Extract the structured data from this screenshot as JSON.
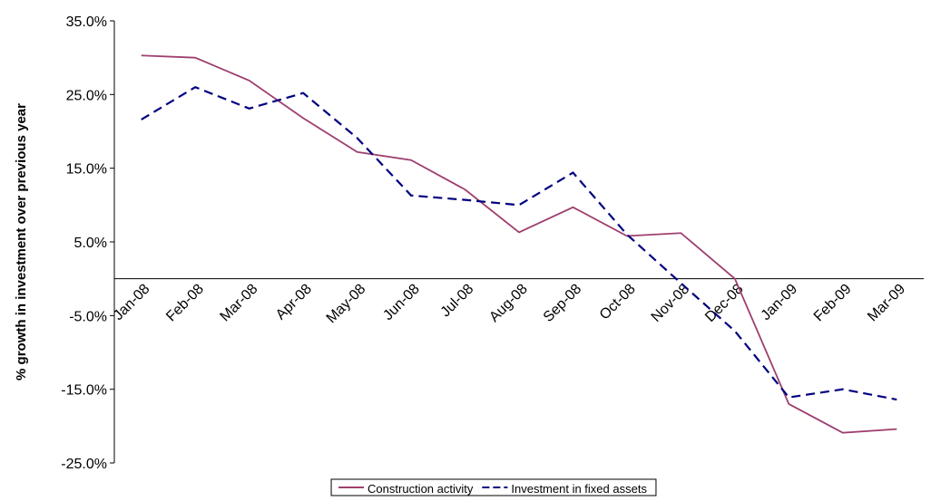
{
  "chart_data": {
    "type": "line",
    "y_label": "% growth in investment over previous year",
    "categories": [
      "Jan-08",
      "Feb-08",
      "Mar-08",
      "Apr-08",
      "May-08",
      "Jun-08",
      "Jul-08",
      "Aug-08",
      "Sep-08",
      "Oct-08",
      "Nov-08",
      "Dec-08",
      "Jan-09",
      "Feb-09",
      "Mar-09"
    ],
    "series": [
      {
        "name": "Construction activity",
        "color": "#9e3f6e",
        "dash": false,
        "values": [
          30.3,
          30.0,
          26.9,
          21.8,
          17.2,
          16.1,
          12.1,
          6.3,
          9.7,
          5.8,
          6.2,
          0.0,
          -17.0,
          -20.9,
          -20.4
        ]
      },
      {
        "name": "Investment in fixed assets",
        "color": "#000080",
        "dash": true,
        "values": [
          21.6,
          26.0,
          23.1,
          25.2,
          19.1,
          11.3,
          10.7,
          10.0,
          14.4,
          6.0,
          -0.6,
          -7.1,
          -16.1,
          -15.0,
          -16.4
        ]
      }
    ],
    "ylim": [
      -25,
      35
    ],
    "yticks": [
      {
        "value": 35,
        "label": "35.0%"
      },
      {
        "value": 25,
        "label": "25.0%"
      },
      {
        "value": 15,
        "label": "15.0%"
      },
      {
        "value": 5,
        "label": "5.0%"
      },
      {
        "value": -5,
        "label": "-5.0%"
      },
      {
        "value": -15,
        "label": "-15.0%"
      },
      {
        "value": -25,
        "label": "-25.0%"
      }
    ],
    "grid": false,
    "legend": "bottom"
  }
}
